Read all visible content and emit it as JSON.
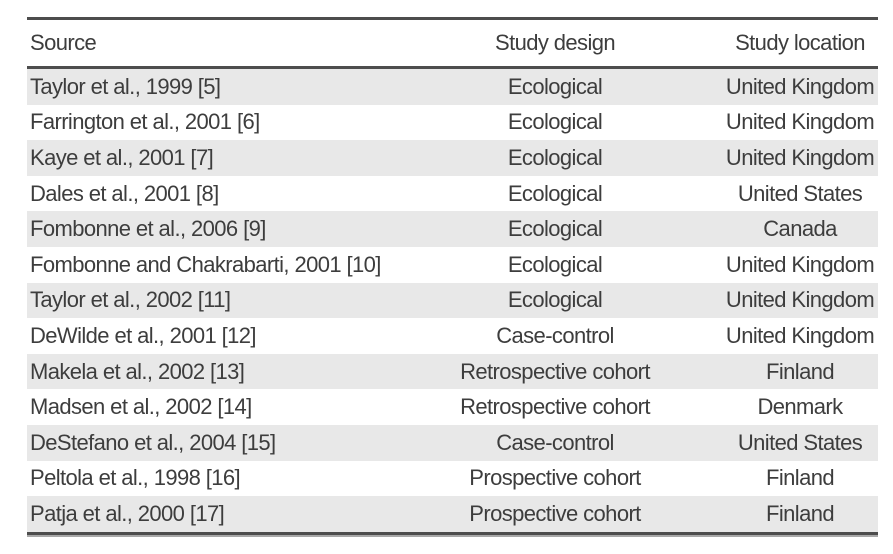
{
  "table": {
    "columns": [
      {
        "label": "Source"
      },
      {
        "label": "Study design"
      },
      {
        "label": "Study location"
      }
    ],
    "rows": [
      {
        "source": "Taylor et al., 1999 [5]",
        "design": "Ecological",
        "location": "United Kingdom"
      },
      {
        "source": "Farrington et al., 2001 [6]",
        "design": "Ecological",
        "location": "United Kingdom"
      },
      {
        "source": "Kaye et al., 2001 [7]",
        "design": "Ecological",
        "location": "United Kingdom"
      },
      {
        "source": "Dales et al., 2001 [8]",
        "design": "Ecological",
        "location": "United States"
      },
      {
        "source": "Fombonne et al., 2006 [9]",
        "design": "Ecological",
        "location": "Canada"
      },
      {
        "source": "Fombonne and Chakrabarti, 2001 [10]",
        "design": "Ecological",
        "location": "United Kingdom"
      },
      {
        "source": "Taylor et al., 2002 [11]",
        "design": "Ecological",
        "location": "United Kingdom"
      },
      {
        "source": "DeWilde et al., 2001 [12]",
        "design": "Case-control",
        "location": "United Kingdom"
      },
      {
        "source": "Makela et al., 2002 [13]",
        "design": "Retrospective cohort",
        "location": "Finland"
      },
      {
        "source": "Madsen et al., 2002 [14]",
        "design": "Retrospective cohort",
        "location": "Denmark"
      },
      {
        "source": "DeStefano et al., 2004 [15]",
        "design": "Case-control",
        "location": "United States"
      },
      {
        "source": "Peltola et al., 1998 [16]",
        "design": "Prospective cohort",
        "location": "Finland"
      },
      {
        "source": "Patja et al., 2000 [17]",
        "design": "Prospective cohort",
        "location": "Finland"
      }
    ],
    "colors": {
      "background": "#ffffff",
      "row_shade": "#e8e8e8",
      "rule": "#4d4d4d",
      "text": "#3d3d3d"
    }
  }
}
